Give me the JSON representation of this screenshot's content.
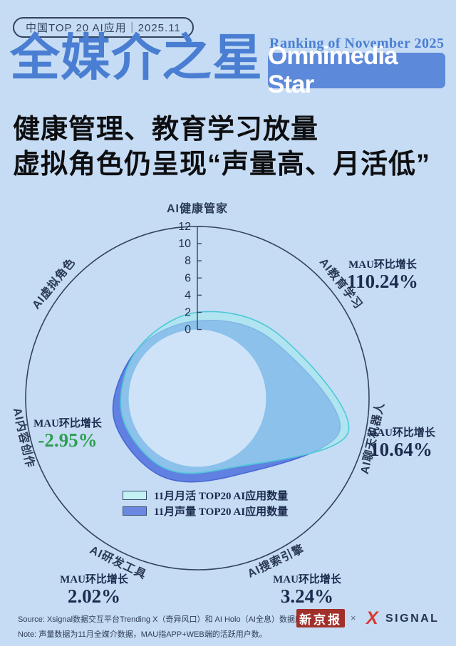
{
  "colors": {
    "background": "#c5dcf4",
    "title_blue": "#4a7ed2",
    "box_blue": "#5d89da",
    "ink": "#0e0e10",
    "navy": "#32425f",
    "tick_color": "#1e2c49",
    "axis_label_color": "#2b3a55",
    "note_navy": "#1c2b4d",
    "green": "#2f9e52",
    "inner_disc": "#cfe3f8",
    "paper_red": "#a2302a",
    "logo_red": "#d93a31"
  },
  "header": {
    "pill": "中国TOP 20 AI应用｜2025.11",
    "title_cn": "全媒介之星",
    "ranking": "Ranking of November 2025",
    "title_en": "Omnimedia Star"
  },
  "headline": {
    "line1": "健康管理、教育学习放量",
    "line2": "虚拟角色仍呈现“声量高、月活低”"
  },
  "chart_data": {
    "type": "radar",
    "title": "",
    "categories": [
      "AI健康管家",
      "AI教育学习",
      "AI聊天机器人",
      "AI搜索引擎",
      "AI研发工具",
      "AI内容创作",
      "AI虚拟角色"
    ],
    "series": [
      {
        "name": "11月月活 TOP20 AI应用数量",
        "values": [
          2,
          4,
          10,
          1,
          1,
          1,
          1
        ],
        "fill": "#a5e9ef",
        "stroke": "#4fc8d6",
        "fill_opacity": 0.62,
        "stroke_opacity": 1
      },
      {
        "name": "11月声量 TOP20 AI应用数量",
        "values": [
          1,
          3,
          9,
          2,
          2,
          2,
          1
        ],
        "fill": "#5577e0",
        "stroke": "#4160d0",
        "fill_opacity": 0.9,
        "stroke_opacity": 0.9
      }
    ],
    "r_ticks": [
      0,
      2,
      4,
      6,
      8,
      10,
      12
    ],
    "r_min": -8,
    "r_max": 12,
    "grid": "single-outer-ring",
    "legend_position": "inside-bottom",
    "mau_growth": [
      {
        "category": "AI教育学习",
        "label": "MAU环比增长",
        "value": "110.24%"
      },
      {
        "category": "AI聊天机器人",
        "label": "MAU环比增长",
        "value": "10.64%"
      },
      {
        "category": "AI内容创作",
        "label": "MAU环比增长",
        "value": "-2.95%"
      },
      {
        "category": "AI研发工具",
        "label": "MAU环比增长",
        "value": "2.02%"
      },
      {
        "category": "AI搜索引擎",
        "label": "MAU环比增长",
        "value": "3.24%"
      }
    ]
  },
  "footer": {
    "source": "Source: Xsignal数据交互平台Trending X（奇异风口）和 AI Holo（AI全息）数据库",
    "note": "Note: 声量数据为11月全媒介数据，MAU指APP+WEB端的活跃用户数。"
  },
  "logos": {
    "paper": "新京报",
    "times": "×",
    "x_mark": "X",
    "brand": "SIGNAL"
  }
}
